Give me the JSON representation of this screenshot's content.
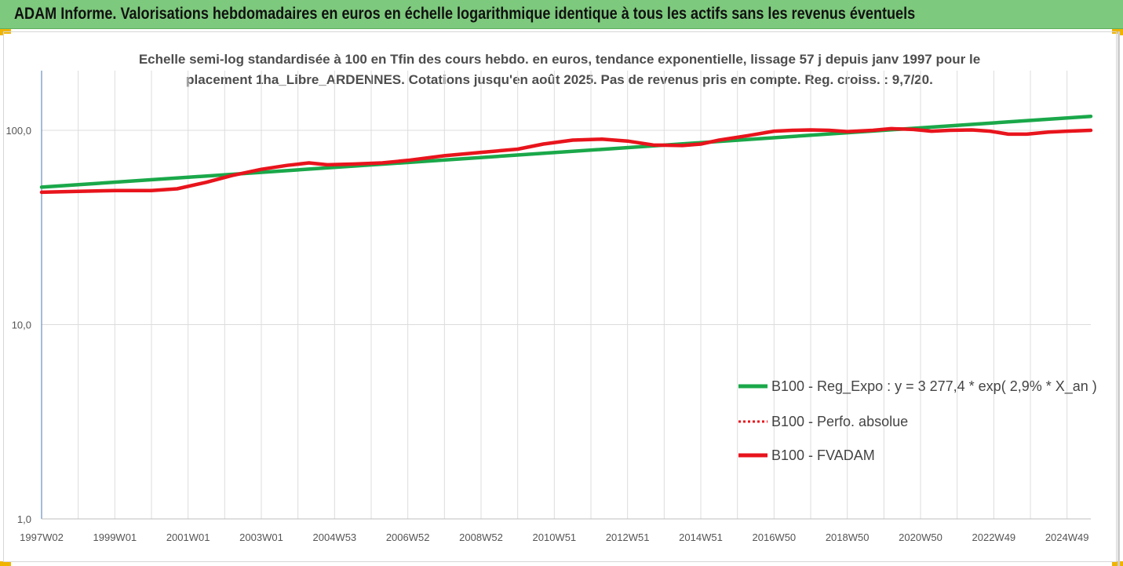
{
  "header": {
    "title": "ADAM Informe. Valorisations hebdomadaires en euros en échelle logarithmique identique à tous les actifs sans les revenus éventuels"
  },
  "colors": {
    "header_bg": "#7dc97d",
    "corner": "#f0b400",
    "regression": "#1aa84a",
    "fvadam": "#e8141c",
    "perfo": "#e8141c"
  },
  "chart_data": {
    "type": "line",
    "title": "",
    "subtitle_lines": [
      "Echelle semi-log standardisée à 100 en Tfin des cours hebdo. en euros, tendance exponentielle, lissage 57 j depuis janv 1997 pour le",
      "placement 1ha_Libre_ARDENNES. Cotations jusqu'en août 2025. Pas de revenus pris en compte. Reg. croiss. : 9,7/20."
    ],
    "xlabel": "",
    "ylabel": "",
    "y_scale": "log",
    "ylim": [
      1,
      200
    ],
    "y_ticks": [
      {
        "value": 1,
        "label": "1,0"
      },
      {
        "value": 10,
        "label": "10,0"
      },
      {
        "value": 100,
        "label": "100,0"
      }
    ],
    "x_range": [
      1997.0,
      2025.65
    ],
    "x_ticks": [
      {
        "x": 1997.0,
        "label": "1997W02"
      },
      {
        "x": 1999.0,
        "label": "1999W01"
      },
      {
        "x": 2001.0,
        "label": "2001W01"
      },
      {
        "x": 2003.0,
        "label": "2003W01"
      },
      {
        "x": 2005.0,
        "label": "2004W53"
      },
      {
        "x": 2007.0,
        "label": "2006W52"
      },
      {
        "x": 2009.0,
        "label": "2008W52"
      },
      {
        "x": 2011.0,
        "label": "2010W51"
      },
      {
        "x": 2013.0,
        "label": "2012W51"
      },
      {
        "x": 2015.0,
        "label": "2014W51"
      },
      {
        "x": 2017.0,
        "label": "2016W50"
      },
      {
        "x": 2019.0,
        "label": "2018W50"
      },
      {
        "x": 2021.0,
        "label": "2020W50"
      },
      {
        "x": 2023.0,
        "label": "2022W49"
      },
      {
        "x": 2025.0,
        "label": "2024W49"
      }
    ],
    "grid": "vertical",
    "legend_position": "bottom-right",
    "series": [
      {
        "name": "B100 - Reg_Expo : y = 3 277,4 * exp( 2,9% *  X_an )",
        "style": "solid",
        "color": "#1aa84a",
        "x": [
          1997.0,
          2025.65
        ],
        "y": [
          51.0,
          118.0
        ]
      },
      {
        "name": "B100 - Perfo. absolue",
        "style": "dotted",
        "color": "#e8141c",
        "x": [],
        "y": []
      },
      {
        "name": "B100 - FVADAM",
        "style": "solid",
        "color": "#e8141c",
        "x": [
          1997.0,
          1998.0,
          1999.0,
          2000.0,
          2000.7,
          2001.5,
          2002.2,
          2003.0,
          2003.7,
          2004.3,
          2004.8,
          2005.5,
          2006.3,
          2007.0,
          2008.0,
          2009.0,
          2010.0,
          2010.7,
          2011.5,
          2012.3,
          2013.0,
          2013.7,
          2014.5,
          2015.0,
          2015.5,
          2016.3,
          2017.0,
          2017.5,
          2018.0,
          2018.5,
          2019.0,
          2019.7,
          2020.2,
          2020.8,
          2021.3,
          2021.8,
          2022.4,
          2022.9,
          2023.4,
          2023.9,
          2024.5,
          2025.0,
          2025.65
        ],
        "y": [
          48.0,
          48.5,
          49.0,
          49.0,
          50.0,
          54.0,
          58.5,
          63.0,
          66.0,
          68.0,
          66.5,
          67.0,
          68.0,
          70.0,
          74.0,
          77.0,
          80.0,
          85.0,
          89.0,
          90.0,
          88.0,
          84.0,
          83.5,
          85.0,
          89.0,
          94.0,
          99.0,
          100.0,
          100.5,
          100.0,
          98.5,
          100.0,
          102.0,
          101.0,
          99.0,
          100.0,
          100.5,
          99.0,
          95.5,
          95.5,
          98.0,
          99.0,
          100.0
        ]
      }
    ]
  }
}
